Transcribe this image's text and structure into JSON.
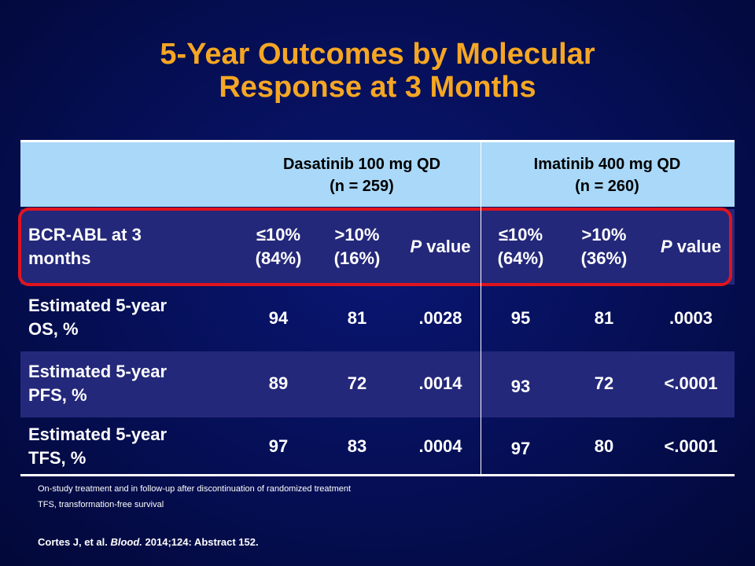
{
  "title": {
    "line1": "5-Year Outcomes by Molecular",
    "line2": "Response at 3 Months"
  },
  "header": {
    "dasatinib": {
      "line1": "Dasatinib 100 mg QD",
      "line2": "(n = 259)"
    },
    "imatinib": {
      "line1": "Imatinib 400 mg QD",
      "line2": "(n = 260)"
    }
  },
  "response_row": {
    "label_line1": "BCR-ABL at 3",
    "label_line2": "months",
    "das_le10_line1": "≤10%",
    "das_le10_line2": "(84%)",
    "das_gt10_line1": ">10%",
    "das_gt10_line2": "(16%)",
    "das_p_italic": "P",
    "das_p_rest": " value",
    "ima_le10_line1": "≤10%",
    "ima_le10_line2": "(64%)",
    "ima_gt10_line1": ">10%",
    "ima_gt10_line2": "(36%)",
    "ima_p_italic": "P",
    "ima_p_rest": " value"
  },
  "rows": [
    {
      "label_line1": "Estimated 5-year",
      "label_line2": "OS, %",
      "das_le10": "94",
      "das_gt10": "81",
      "das_p": ".0028",
      "ima_le10": "95",
      "ima_gt10": "81",
      "ima_p": ".0003"
    },
    {
      "label_line1": "Estimated 5-year",
      "label_line2": "PFS, %",
      "das_le10": "89",
      "das_gt10": "72",
      "das_p": ".0014",
      "ima_le10": "93",
      "ima_gt10": "72",
      "ima_p": "<.0001"
    },
    {
      "label_line1": "Estimated 5-year",
      "label_line2": "TFS, %",
      "das_le10": "97",
      "das_gt10": "83",
      "das_p": ".0004",
      "ima_le10": "97",
      "ima_gt10": "80",
      "ima_p": "<.0001"
    }
  ],
  "footnotes": [
    "On-study treatment and in follow-up after discontinuation of randomized treatment",
    "TFS, transformation-free  survival"
  ],
  "citation": {
    "authors": "Cortes J, et al. ",
    "journal": "Blood.",
    "rest": " 2014;124: Abstract 152."
  },
  "colors": {
    "title": "#f5a623",
    "header_bg": "#a9d8f8",
    "alt_row_bg": "#24287a",
    "highlight_border": "#e0141e"
  }
}
